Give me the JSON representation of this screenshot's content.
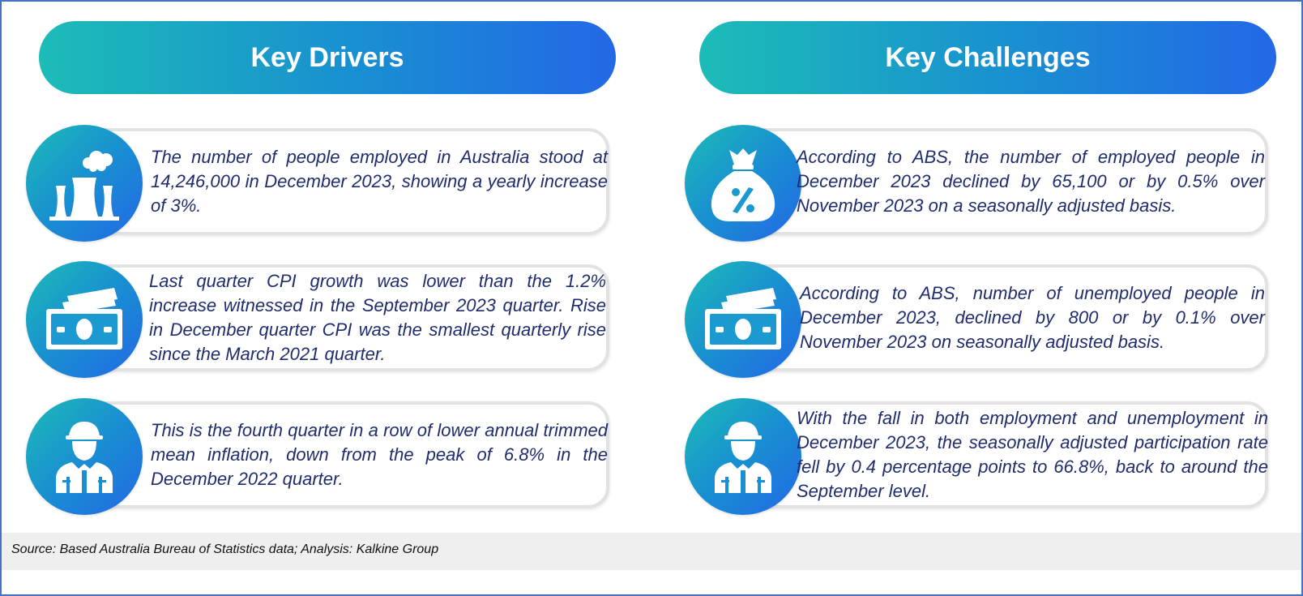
{
  "columns": [
    {
      "title": "Key Drivers",
      "items": [
        {
          "icon": "factory-icon",
          "text": "The number of people employed in Australia stood at 14,246,000 in December 2023, showing a yearly increase of 3%."
        },
        {
          "icon": "money-icon",
          "text": "Last quarter CPI growth was lower than the 1.2% increase witnessed in the September 2023 quarter. Rise in December quarter CPI was the smallest quarterly rise since the March 2021 quarter."
        },
        {
          "icon": "worker-icon",
          "text": "This is the fourth quarter in a row of lower annual trimmed mean inflation, down from the peak of 6.8% in the December 2022 quarter."
        }
      ]
    },
    {
      "title": "Key Challenges",
      "items": [
        {
          "icon": "money-bag-percent-icon",
          "text": "According to ABS, the number of employed people in December 2023 declined by 65,100 or by 0.5% over November 2023 on a seasonally adjusted basis."
        },
        {
          "icon": "money-icon",
          "text": "According to ABS, number of unemployed people in December 2023, declined by 800 or by 0.1% over November 2023 on seasonally adjusted basis."
        },
        {
          "icon": "worker-icon",
          "text": "With the fall in both employment and unemployment in December 2023, the seasonally adjusted participation rate fell by 0.4 percentage points to 66.8%, back to around the September level."
        }
      ]
    }
  ],
  "footer": {
    "source": "Source: Based Australia Bureau of Statistics data; Analysis: Kalkine Group"
  },
  "colors": {
    "gradient_start": "#1cbcb7",
    "gradient_end": "#2368e6",
    "text": "#1f2d6e",
    "frame": "#4472c4"
  }
}
